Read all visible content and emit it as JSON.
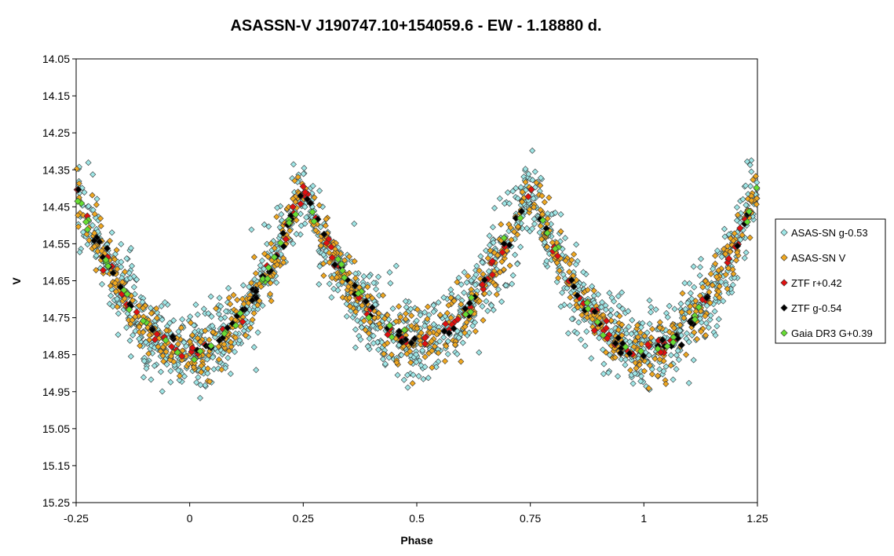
{
  "chart_data": {
    "type": "scatter",
    "title": "ASASSN-V J190747.10+154059.6  - EW - 1.18880 d.",
    "xlabel": "Phase",
    "ylabel": "V",
    "xlim": [
      -0.25,
      1.25
    ],
    "ylim": [
      14.05,
      15.25
    ],
    "y_inverted": true,
    "grid": false,
    "legend_position": "right",
    "x_ticks": [
      "-0.25",
      "0",
      "0.25",
      "0.5",
      "0.75",
      "1",
      "1.25"
    ],
    "y_ticks": [
      "14.05",
      "14.15",
      "14.25",
      "14.35",
      "14.45",
      "14.55",
      "14.65",
      "14.75",
      "14.85",
      "14.95",
      "15.05",
      "15.15",
      "15.25"
    ],
    "light_curve": {
      "minimum_phases": [
        0.0,
        0.5,
        1.0
      ],
      "maximum_phases": [
        0.25,
        0.75
      ],
      "primary_min_mag": 14.84,
      "secondary_min_mag": 14.81,
      "max_mag": 14.4
    },
    "series": [
      {
        "name": "ASAS-SN g-0.53",
        "color": "#9ee6e6",
        "marker": "diamond",
        "approx_points": 1500,
        "scatter_mag": 0.06
      },
      {
        "name": "ASAS-SN V",
        "color": "#f0a820",
        "marker": "diamond",
        "approx_points": 800,
        "scatter_mag": 0.04
      },
      {
        "name": "ZTF r+0.42",
        "color": "#e01010",
        "marker": "diamond",
        "approx_points": 110,
        "scatter_mag": 0.012
      },
      {
        "name": "ZTF g-0.54",
        "color": "#000000",
        "marker": "diamond",
        "approx_points": 110,
        "scatter_mag": 0.012
      },
      {
        "name": "Gaia DR3 G+0.39",
        "color": "#66dd33",
        "marker": "diamond",
        "approx_points": 70,
        "scatter_mag": 0.012
      }
    ]
  }
}
